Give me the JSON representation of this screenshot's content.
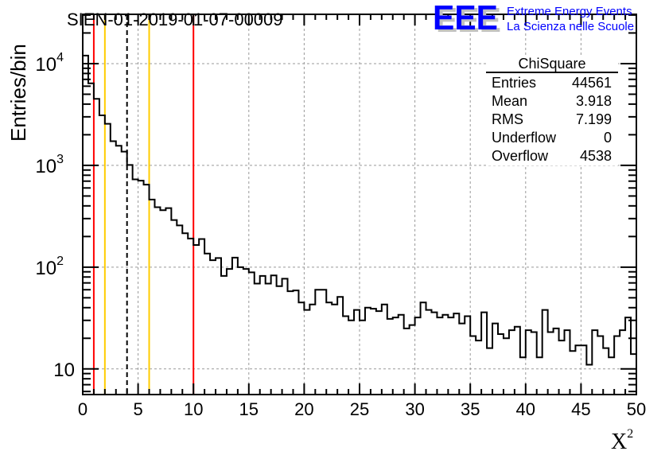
{
  "chart_data": {
    "type": "bar",
    "style": "step-histogram",
    "title": "SIEN-01-2019-01-07-00009",
    "xlabel": "X",
    "xlabel_superscript": "2",
    "ylabel": "Entries/bin",
    "xlim": [
      0,
      50
    ],
    "ylim": [
      5.6,
      30500
    ],
    "yscale": "log",
    "grid": true,
    "bin_width": 0.5,
    "x_ticks": [
      "0",
      "5",
      "10",
      "15",
      "20",
      "25",
      "30",
      "35",
      "40",
      "45",
      "50"
    ],
    "y_ticks": [
      {
        "value": 10,
        "base": "10",
        "exp": ""
      },
      {
        "value": 100,
        "base": "10",
        "exp": "2"
      },
      {
        "value": 1000,
        "base": "10",
        "exp": "3"
      },
      {
        "value": 10000,
        "base": "10",
        "exp": "4"
      }
    ],
    "values": [
      12000,
      6400,
      4510,
      3100,
      2560,
      1730,
      1560,
      1365,
      1010,
      728,
      707,
      646,
      461,
      388,
      363,
      380,
      290,
      257,
      215,
      191,
      165,
      189,
      136,
      117,
      123,
      82,
      96,
      124,
      100,
      96,
      89,
      69,
      82,
      69,
      83,
      65,
      77,
      58,
      59,
      45,
      38,
      43,
      60,
      60,
      45,
      43,
      51,
      33,
      30,
      38,
      30,
      40,
      39,
      37,
      43,
      31,
      32,
      34,
      25,
      27,
      32,
      45,
      38,
      36,
      32,
      34,
      32,
      35,
      28,
      33,
      21,
      19,
      36,
      16,
      28,
      22,
      20,
      24,
      26,
      13,
      24,
      23,
      13,
      38,
      23,
      25,
      19,
      24,
      15,
      17,
      17,
      11,
      24,
      21,
      16,
      13,
      21,
      24,
      32,
      14
    ],
    "vertical_lines": [
      {
        "x": 1,
        "color": "#ff0000",
        "style": "solid"
      },
      {
        "x": 10,
        "color": "#ff0000",
        "style": "solid"
      },
      {
        "x": 2,
        "color": "#ffcc00",
        "style": "solid"
      },
      {
        "x": 6,
        "color": "#ffcc00",
        "style": "solid"
      },
      {
        "x": 4,
        "color": "#000000",
        "style": "dashed"
      }
    ],
    "stats_box": {
      "title": "ChiSquare",
      "placement": "top-right",
      "rows": [
        {
          "label": "Entries",
          "value": "44561"
        },
        {
          "label": "Mean",
          "value": "3.918"
        },
        {
          "label": "RMS",
          "value": "7.199"
        },
        {
          "label": "Underflow",
          "value": "0"
        },
        {
          "label": "Overflow",
          "value": "4538"
        }
      ]
    }
  },
  "logo": {
    "mark": "EEE",
    "line1": "Extreme Energy Events",
    "line2": "La Scienza nelle Scuole",
    "color": "#0000ff"
  }
}
